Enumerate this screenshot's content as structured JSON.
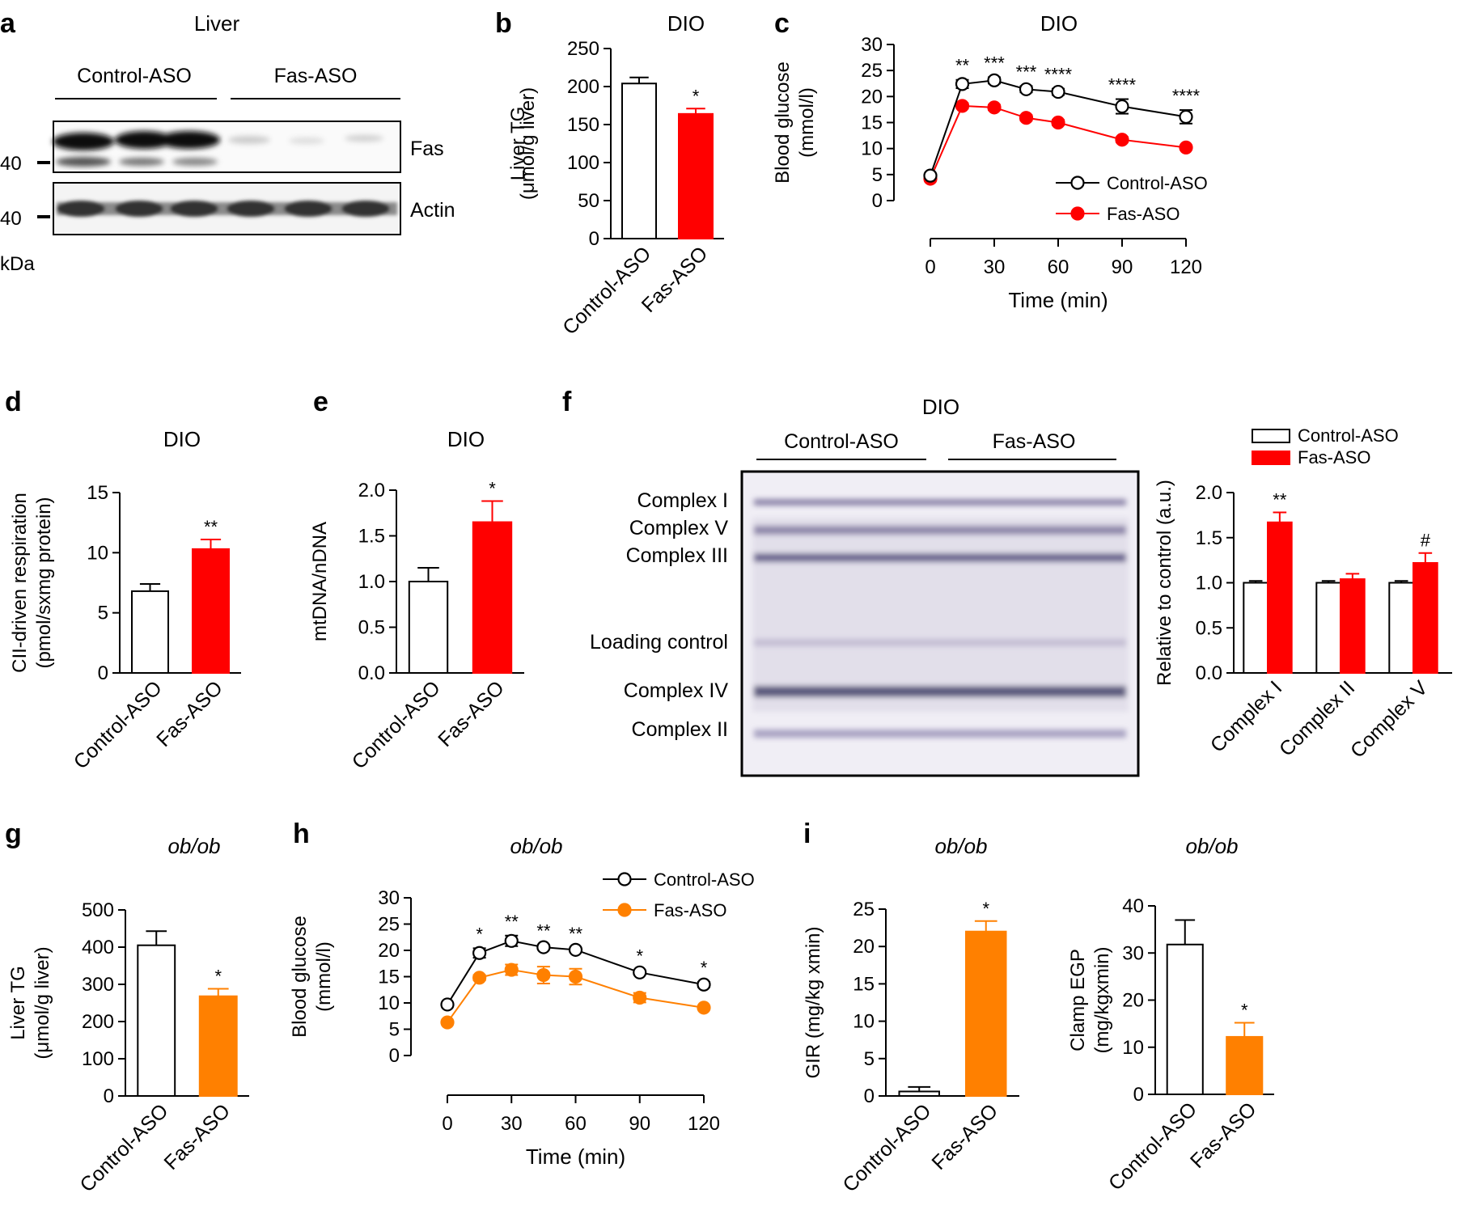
{
  "colors": {
    "control": "#ffffff",
    "fas_red": "#ff0000",
    "fas_orange": "#ff8000",
    "ink": "#000000",
    "blot_band": "#5a5a78",
    "blot_bg": "#f2f0f6"
  },
  "panels": {
    "a": {
      "letter": "a",
      "title": "Liver",
      "group_labels": [
        "Control-ASO",
        "Fas-ASO"
      ],
      "band_labels": [
        "Fas",
        "Actin"
      ],
      "marker_labels": [
        "40",
        "40"
      ],
      "unit": "kDa"
    },
    "f_blot": {
      "letter": "f",
      "title": "DIO",
      "group_labels": [
        "Control-ASO",
        "Fas-ASO"
      ],
      "band_labels": [
        "Complex I",
        "Complex V",
        "Complex III",
        "Loading control",
        "Complex IV",
        "Complex II"
      ]
    }
  },
  "chart_data": [
    {
      "id": "b",
      "letter": "b",
      "type": "bar",
      "title": "DIO",
      "ylabel": [
        "Liver TG",
        "(μmol/g liver)"
      ],
      "xlabel": "",
      "ylim": [
        0,
        250
      ],
      "yticks": [
        0,
        50,
        100,
        150,
        200,
        250
      ],
      "categories": [
        "Control-ASO",
        "Fas-ASO"
      ],
      "values": [
        204,
        164
      ],
      "errors": [
        8,
        7
      ],
      "stars": [
        "",
        "*"
      ],
      "fills": [
        "#ffffff",
        "#ff0000"
      ],
      "strokes": [
        "#000000",
        "#ff0000"
      ]
    },
    {
      "id": "c",
      "letter": "c",
      "type": "line",
      "title": "DIO",
      "ylabel": [
        "Blood glucose",
        "(mmol/l)"
      ],
      "xlabel": "Time (min)",
      "ylim": [
        0,
        30
      ],
      "yticks": [
        0,
        5,
        10,
        15,
        20,
        25,
        30
      ],
      "xlim": [
        0,
        120
      ],
      "xticks": [
        0,
        30,
        60,
        90,
        120
      ],
      "series": [
        {
          "name": "Control-ASO",
          "x": [
            0,
            15,
            30,
            45,
            60,
            90,
            120
          ],
          "values": [
            4.8,
            22.4,
            23.1,
            21.4,
            20.9,
            18.1,
            16.1
          ],
          "errors": [
            0.3,
            0.8,
            0.6,
            0.6,
            0.6,
            1.4,
            1.3
          ],
          "color": "#000000",
          "marker": "open"
        },
        {
          "name": "Fas-ASO",
          "x": [
            0,
            15,
            30,
            45,
            60,
            90,
            120
          ],
          "values": [
            4.2,
            18.2,
            17.9,
            15.9,
            15.0,
            11.7,
            10.2
          ],
          "errors": [
            0.3,
            0.5,
            0.5,
            0.5,
            0.5,
            0.5,
            0.4
          ],
          "color": "#ff0000",
          "marker": "filled"
        }
      ],
      "stars": [
        {
          "x": 15,
          "text": "**"
        },
        {
          "x": 30,
          "text": "***"
        },
        {
          "x": 45,
          "text": "***"
        },
        {
          "x": 60,
          "text": "****"
        },
        {
          "x": 90,
          "text": "****"
        },
        {
          "x": 120,
          "text": "****"
        }
      ],
      "legend": "right"
    },
    {
      "id": "d",
      "letter": "d",
      "type": "bar",
      "title": "DIO",
      "ylabel": [
        "CII-driven respiration",
        "(pmol/sxmg protein)"
      ],
      "xlabel": "",
      "ylim": [
        0,
        15
      ],
      "yticks": [
        0,
        5,
        10,
        15
      ],
      "categories": [
        "Control-ASO",
        "Fas-ASO"
      ],
      "values": [
        6.8,
        10.3
      ],
      "errors": [
        0.6,
        0.8
      ],
      "stars": [
        "",
        "**"
      ],
      "fills": [
        "#ffffff",
        "#ff0000"
      ],
      "strokes": [
        "#000000",
        "#ff0000"
      ]
    },
    {
      "id": "e",
      "letter": "e",
      "type": "bar",
      "title": "DIO",
      "ylabel": [
        "mtDNA/nDNA"
      ],
      "xlabel": "",
      "ylim": [
        0,
        2.0
      ],
      "yticks": [
        "0.0",
        "0.5",
        "1.0",
        "1.5",
        "2.0"
      ],
      "categories": [
        "Control-ASO",
        "Fas-ASO"
      ],
      "values": [
        1.0,
        1.65
      ],
      "errors": [
        0.15,
        0.23
      ],
      "stars": [
        "",
        "*"
      ],
      "fills": [
        "#ffffff",
        "#ff0000"
      ],
      "strokes": [
        "#000000",
        "#ff0000"
      ]
    },
    {
      "id": "f",
      "letter": "",
      "type": "bar",
      "title": "",
      "ylabel": [
        "Relative to control (a.u.)"
      ],
      "xlabel": "",
      "ylim": [
        0,
        2.0
      ],
      "yticks": [
        "0.0",
        "0.5",
        "1.0",
        "1.5",
        "2.0"
      ],
      "categories": [
        "Complex I",
        "Complex II",
        "Complex V"
      ],
      "series": [
        {
          "name": "Control-ASO",
          "values": [
            1.0,
            1.0,
            1.0
          ],
          "errors": [
            0.02,
            0.02,
            0.02
          ],
          "fill": "#ffffff",
          "stroke": "#000000"
        },
        {
          "name": "Fas-ASO",
          "values": [
            1.67,
            1.04,
            1.22
          ],
          "errors": [
            0.11,
            0.06,
            0.11
          ],
          "fill": "#ff0000",
          "stroke": "#ff0000"
        }
      ],
      "stars": [
        "**",
        "",
        "#"
      ],
      "legend": "top"
    },
    {
      "id": "g",
      "letter": "g",
      "type": "bar",
      "title": "ob/ob",
      "ylabel": [
        "Liver TG",
        "(μmol/g liver)"
      ],
      "xlabel": "",
      "ylim": [
        0,
        500
      ],
      "yticks": [
        0,
        100,
        200,
        300,
        400,
        500
      ],
      "categories": [
        "Control-ASO",
        "Fas-ASO"
      ],
      "values": [
        405,
        268
      ],
      "errors": [
        38,
        20
      ],
      "stars": [
        "",
        "*"
      ],
      "fills": [
        "#ffffff",
        "#ff8000"
      ],
      "strokes": [
        "#000000",
        "#ff8000"
      ]
    },
    {
      "id": "h",
      "letter": "h",
      "type": "line",
      "title": "ob/ob",
      "ylabel": [
        "Blood glucose",
        "(mmol/l)"
      ],
      "xlabel": "Time (min)",
      "ylim": [
        0,
        30
      ],
      "yticks": [
        0,
        5,
        10,
        15,
        20,
        25,
        30
      ],
      "xlim": [
        0,
        120
      ],
      "xticks": [
        0,
        30,
        60,
        90,
        120
      ],
      "series": [
        {
          "name": "Control-ASO",
          "x": [
            0,
            15,
            30,
            45,
            60,
            90,
            120
          ],
          "values": [
            9.7,
            19.5,
            21.8,
            20.6,
            20.1,
            15.8,
            13.5
          ],
          "errors": [
            0.3,
            0.9,
            1.0,
            0.4,
            0.4,
            0.4,
            0.5
          ],
          "color": "#000000",
          "marker": "open"
        },
        {
          "name": "Fas-ASO",
          "x": [
            0,
            15,
            30,
            45,
            60,
            90,
            120
          ],
          "values": [
            6.3,
            14.8,
            16.3,
            15.3,
            15.0,
            11.0,
            9.1
          ],
          "errors": [
            0.3,
            0.5,
            1.0,
            1.6,
            1.5,
            0.9,
            0.3
          ],
          "color": "#ff8000",
          "marker": "filled"
        }
      ],
      "stars": [
        {
          "x": 15,
          "text": "*"
        },
        {
          "x": 30,
          "text": "**"
        },
        {
          "x": 45,
          "text": "**"
        },
        {
          "x": 60,
          "text": "**"
        },
        {
          "x": 90,
          "text": "*"
        },
        {
          "x": 120,
          "text": "*"
        }
      ],
      "legend": "top-right"
    },
    {
      "id": "i1",
      "letter": "i",
      "type": "bar",
      "title": "ob/ob",
      "ylabel": [
        "GIR (mg/kg xmin)"
      ],
      "xlabel": "",
      "ylim": [
        0,
        25
      ],
      "yticks": [
        0,
        5,
        10,
        15,
        20,
        25
      ],
      "categories": [
        "Control-ASO",
        "Fas-ASO"
      ],
      "values": [
        0.6,
        22.0
      ],
      "errors": [
        0.6,
        1.4
      ],
      "stars": [
        "",
        "*"
      ],
      "fills": [
        "#ffffff",
        "#ff8000"
      ],
      "strokes": [
        "#000000",
        "#ff8000"
      ]
    },
    {
      "id": "i2",
      "letter": "",
      "type": "bar",
      "title": "ob/ob",
      "ylabel": [
        "Clamp EGP",
        "(mg/kgxmin)"
      ],
      "xlabel": "",
      "ylim": [
        0,
        40
      ],
      "yticks": [
        0,
        10,
        20,
        30,
        40
      ],
      "categories": [
        "Control-ASO",
        "Fas-ASO"
      ],
      "values": [
        31.8,
        12.2
      ],
      "errors": [
        5.2,
        3.0
      ],
      "stars": [
        "",
        "*"
      ],
      "fills": [
        "#ffffff",
        "#ff8000"
      ],
      "strokes": [
        "#000000",
        "#ff8000"
      ]
    }
  ]
}
